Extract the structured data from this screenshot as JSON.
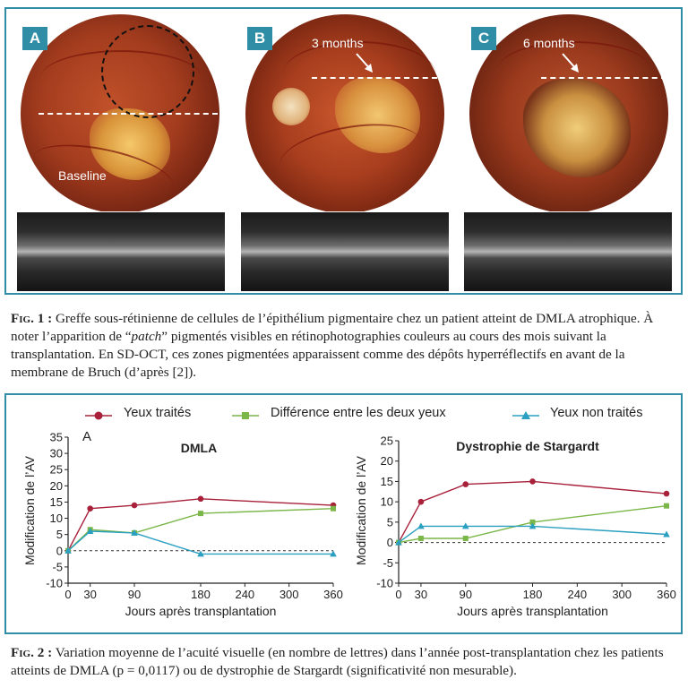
{
  "figure1": {
    "panels": [
      {
        "label": "A",
        "annotation": "Baseline"
      },
      {
        "label": "B",
        "annotation": "3 months"
      },
      {
        "label": "C",
        "annotation": "6 months"
      }
    ],
    "caption_label": "Fig. 1 :",
    "caption_parts": [
      "Greffe sous-rétinienne de cellules de l’épithélium pigmentaire chez un patient atteint de DMLA atrophique. À noter l’apparition de “",
      "patch",
      "” pigmentés visibles en rétinophotographies couleurs au cours des mois suivant la transplantation. En SD-OCT, ces zones pigmentées apparaissent comme des dépôts hyperréflectifs en avant de la membrane de Bruch (d’après [2])."
    ]
  },
  "legend": [
    {
      "name": "Yeux traités",
      "color": "#a8203a",
      "marker": "circle"
    },
    {
      "name": "Différence entre les deux yeux",
      "color": "#7ab648",
      "marker": "square"
    },
    {
      "name": "Yeux non traités",
      "color": "#2a9fc0",
      "marker": "triangle"
    }
  ],
  "chart_data": [
    {
      "type": "line",
      "panel_label": "A",
      "title": "DMLA",
      "xlabel": "Jours après transplantation",
      "ylabel": "Modification de l’AV",
      "xticks": [
        0,
        30,
        90,
        180,
        240,
        300,
        360
      ],
      "yticks": [
        -10,
        -5,
        0,
        5,
        10,
        15,
        20,
        25,
        30,
        35
      ],
      "xlim": [
        0,
        360
      ],
      "ylim": [
        -10,
        35
      ],
      "zero_line": "dashed",
      "series": [
        {
          "name": "Yeux traités",
          "color": "#a8203a",
          "marker": "circle",
          "x": [
            0,
            30,
            90,
            180,
            360
          ],
          "y": [
            0,
            13,
            14,
            16,
            14
          ]
        },
        {
          "name": "Différence entre les deux yeux",
          "color": "#7ab648",
          "marker": "square",
          "x": [
            0,
            30,
            90,
            180,
            360
          ],
          "y": [
            0,
            6.5,
            5.5,
            11.5,
            13
          ]
        },
        {
          "name": "Yeux non traités",
          "color": "#2a9fc0",
          "marker": "triangle",
          "x": [
            0,
            30,
            90,
            180,
            360
          ],
          "y": [
            0,
            6,
            5.5,
            -1,
            -1
          ]
        }
      ]
    },
    {
      "type": "line",
      "title": "Dystrophie de Stargardt",
      "xlabel": "Jours après transplantation",
      "ylabel": "Modification de l’AV",
      "xticks": [
        0,
        30,
        90,
        180,
        240,
        300,
        360
      ],
      "yticks": [
        -10,
        -5,
        0,
        5,
        10,
        15,
        20,
        25
      ],
      "xlim": [
        0,
        360
      ],
      "ylim": [
        -10,
        25
      ],
      "zero_line": "dashed",
      "series": [
        {
          "name": "Yeux traités",
          "color": "#a8203a",
          "marker": "circle",
          "x": [
            0,
            30,
            90,
            180,
            360
          ],
          "y": [
            0,
            10,
            14.3,
            15,
            12
          ]
        },
        {
          "name": "Différence entre les deux yeux",
          "color": "#7ab648",
          "marker": "square",
          "x": [
            0,
            30,
            90,
            180,
            360
          ],
          "y": [
            0,
            1,
            1,
            5,
            9
          ]
        },
        {
          "name": "Yeux non traités",
          "color": "#2a9fc0",
          "marker": "triangle",
          "x": [
            0,
            30,
            90,
            180,
            360
          ],
          "y": [
            0,
            4,
            4,
            4,
            2
          ]
        }
      ]
    }
  ],
  "figure2": {
    "caption_label": "Fig. 2 :",
    "caption": "Variation moyenne de l’acuité visuelle (en nombre de lettres) dans l’année post-transplantation chez les patients atteints de DMLA (p = 0,0117) ou de dystrophie de Stargardt (significativité non mesurable)."
  }
}
